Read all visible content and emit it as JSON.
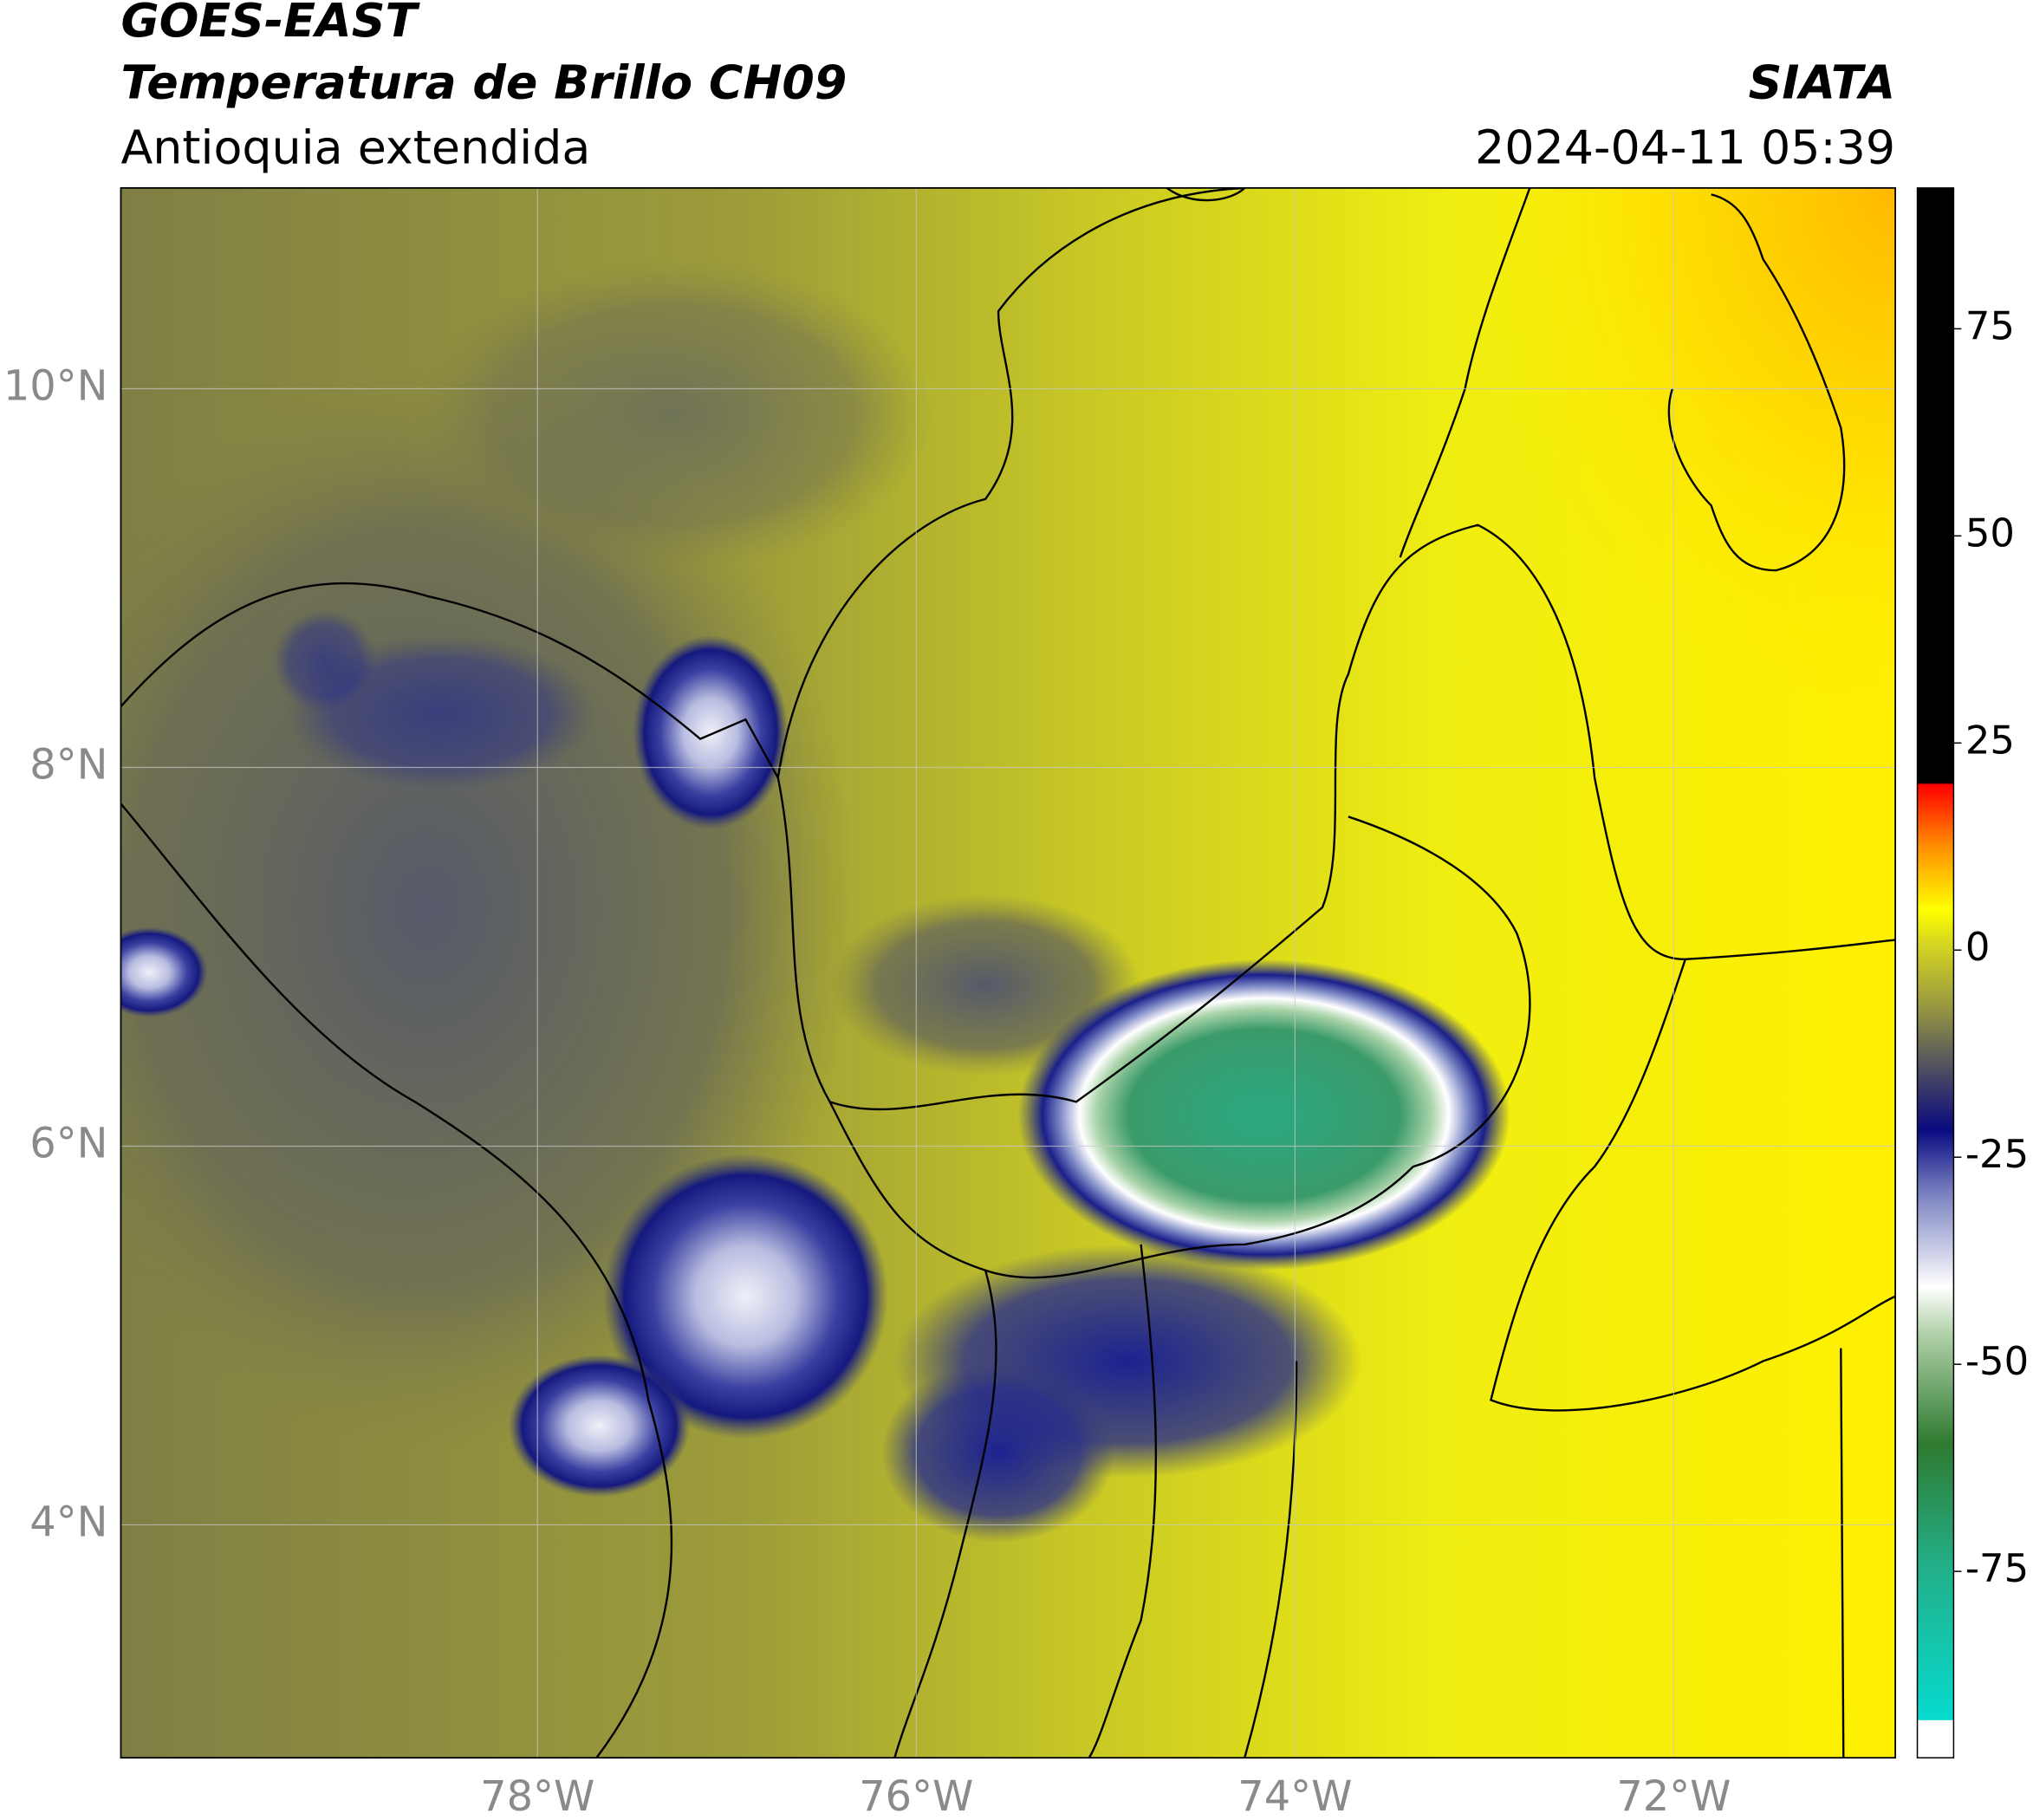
{
  "header": {
    "title": "GOES-EAST",
    "subtitle": "Temperatura de Brillo CH09",
    "region": "Antioquia extendida",
    "source": "SIATA",
    "datetime": "2024-04-11 05:39"
  },
  "map": {
    "xlim": [
      -80.2,
      -70.83
    ],
    "ylim": [
      2.77,
      11.06
    ],
    "xticks": [
      {
        "value": -78,
        "label": "78°W"
      },
      {
        "value": -76,
        "label": "76°W"
      },
      {
        "value": -74,
        "label": "74°W"
      },
      {
        "value": -72,
        "label": "72°W"
      }
    ],
    "yticks": [
      {
        "value": 4,
        "label": "4°N"
      },
      {
        "value": 6,
        "label": "6°N"
      },
      {
        "value": 8,
        "label": "8°N"
      },
      {
        "value": 10,
        "label": "10°N"
      }
    ],
    "grid": true
  },
  "colorbar": {
    "lim": [
      -97.5,
      92
    ],
    "ticks": [
      -75,
      -50,
      -25,
      0,
      25,
      50,
      75
    ]
  }
}
